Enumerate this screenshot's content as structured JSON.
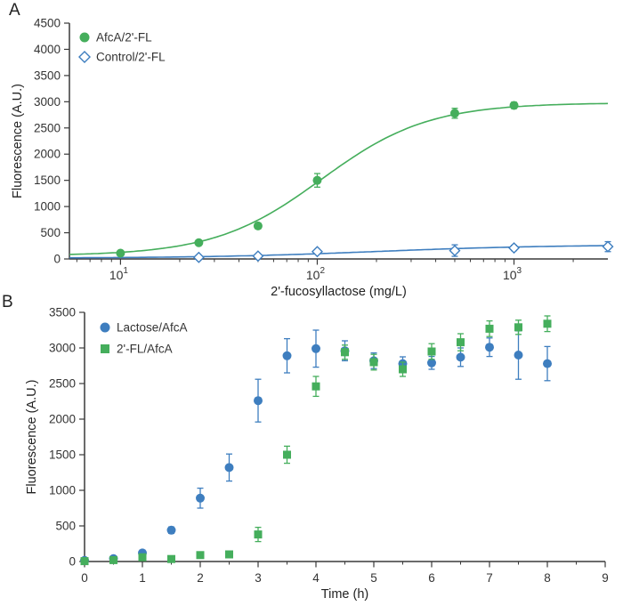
{
  "figure": {
    "background": "#ffffff"
  },
  "panels": [
    {
      "label": "A"
    },
    {
      "label": "B"
    }
  ],
  "colors": {
    "green": "#45ae5c",
    "blue": "#3e7ebf",
    "axis": "#3a3a3a",
    "text": "#333333"
  },
  "chart_data": [
    {
      "type": "scatter",
      "panel": "A",
      "title": "",
      "xlabel": "2'-fucosyllactose (mg/L)",
      "ylabel": "Fluorescence (A.U.)",
      "xscale": "log",
      "xlim": [
        5.5,
        3000
      ],
      "ylim": [
        0,
        4500
      ],
      "xticks": [
        10,
        100,
        1000
      ],
      "yticks": [
        0,
        500,
        1000,
        1500,
        2000,
        2500,
        3000,
        3500,
        4000,
        4500
      ],
      "grid": false,
      "legend_position": "top-left",
      "series": [
        {
          "name": "AfcA/2'-FL",
          "marker": "circle",
          "color": "#45ae5c",
          "x": [
            10,
            25,
            50,
            100,
            500,
            1000
          ],
          "y": [
            110,
            310,
            630,
            1500,
            2780,
            2930
          ],
          "yerr": [
            45,
            45,
            55,
            130,
            95,
            60
          ],
          "fit": {
            "model": "hill",
            "bottom": 60,
            "top": 2980,
            "ec50": 105,
            "hillslope": 1.6
          }
        },
        {
          "name": "Control/2'-FL",
          "marker": "diamond-open",
          "color": "#3e7ebf",
          "x": [
            25,
            50,
            100,
            500,
            1000,
            3000
          ],
          "y": [
            30,
            55,
            140,
            160,
            210,
            235
          ],
          "yerr": [
            20,
            20,
            40,
            110,
            50,
            95
          ],
          "fit": {
            "model": "hill",
            "bottom": 15,
            "top": 270,
            "ec50": 200,
            "hillslope": 1.0
          }
        }
      ]
    },
    {
      "type": "scatter",
      "panel": "B",
      "title": "",
      "xlabel": "Time (h)",
      "ylabel": "Fluorescence (A.U.)",
      "xscale": "linear",
      "xlim": [
        0,
        9
      ],
      "ylim": [
        0,
        3500
      ],
      "xticks": [
        0,
        1,
        2,
        3,
        4,
        5,
        6,
        7,
        8,
        9
      ],
      "xminor": 0.5,
      "yticks": [
        0,
        500,
        1000,
        1500,
        2000,
        2500,
        3000,
        3500
      ],
      "grid": false,
      "legend_position": "top-left",
      "series": [
        {
          "name": "Lactose/AfcA",
          "marker": "circle",
          "color": "#3e7ebf",
          "x": [
            0,
            0.5,
            1,
            1.5,
            2,
            2.5,
            3,
            3.5,
            4,
            4.5,
            5,
            5.5,
            6,
            6.5,
            7,
            7.5,
            8
          ],
          "y": [
            15,
            40,
            120,
            440,
            890,
            1320,
            2260,
            2890,
            2990,
            2960,
            2820,
            2780,
            2790,
            2870,
            3010,
            2900,
            2780
          ],
          "yerr": [
            10,
            20,
            40,
            45,
            140,
            190,
            300,
            240,
            260,
            140,
            110,
            95,
            90,
            130,
            130,
            340,
            240
          ]
        },
        {
          "name": "2'-FL/AfcA",
          "marker": "square",
          "color": "#45ae5c",
          "x": [
            0,
            0.5,
            1,
            1.5,
            2,
            2.5,
            3,
            3.5,
            4,
            4.5,
            5,
            5.5,
            6,
            6.5,
            7,
            7.5,
            8
          ],
          "y": [
            5,
            20,
            60,
            35,
            90,
            100,
            380,
            1500,
            2460,
            2940,
            2800,
            2700,
            2950,
            3080,
            3270,
            3290,
            3340
          ],
          "yerr": [
            5,
            10,
            30,
            15,
            30,
            25,
            100,
            120,
            140,
            100,
            110,
            100,
            110,
            120,
            110,
            100,
            110
          ]
        }
      ]
    }
  ]
}
